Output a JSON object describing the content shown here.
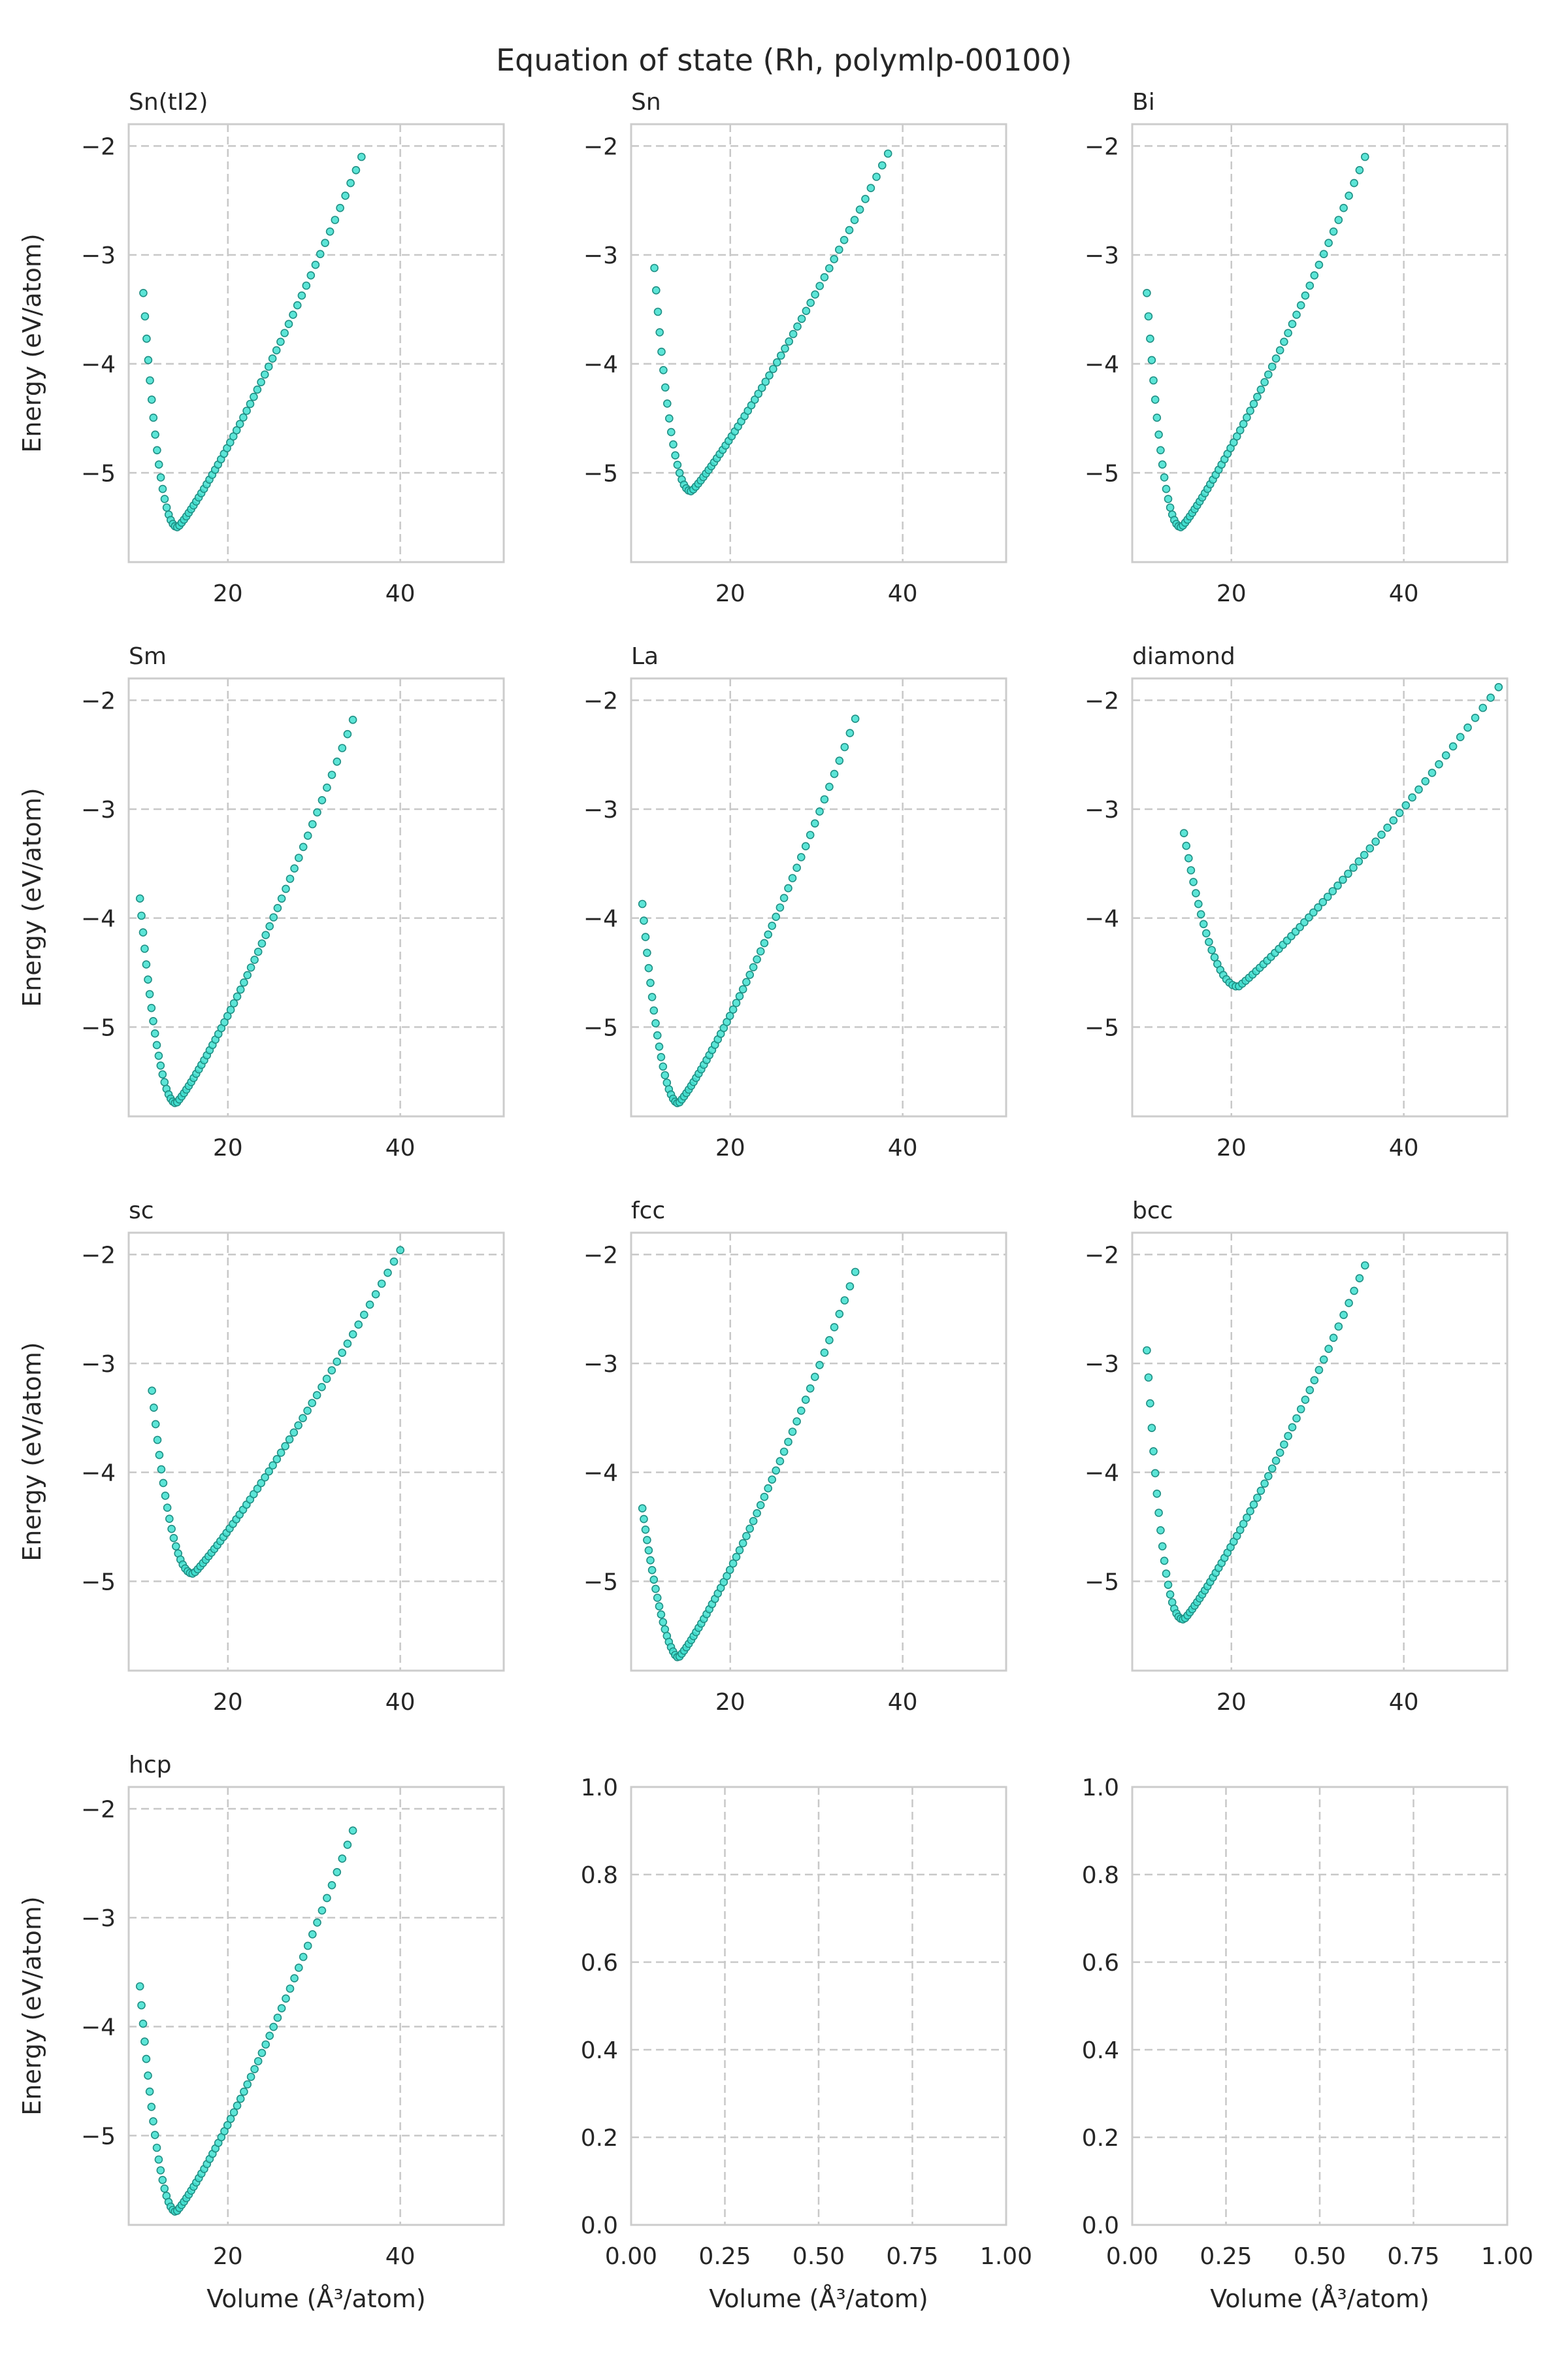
{
  "figure_title": "Equation of state (Rh, polymlp-00100)",
  "colors": {
    "marker": "#40e0d0",
    "marker_edge": "#1f8f84",
    "grid": "#c8c8c8",
    "frame": "#cccccc",
    "text": "#262626"
  },
  "chart_data": [
    {
      "type": "scatter",
      "title": "Sn(tI2)",
      "xlabel": "",
      "ylabel": "Energy (eV/atom)",
      "xlim": [
        8.5,
        52
      ],
      "ylim": [
        -5.82,
        -1.8
      ],
      "xticks": [
        20,
        40
      ],
      "xtick_labels": [
        "20",
        "40"
      ],
      "yticks": [
        -5,
        -4,
        -3,
        -2
      ],
      "ytick_labels": [
        "−5",
        "−4",
        "−3",
        "−2"
      ],
      "grid": true,
      "curve": {
        "v0": 14.2,
        "e0": -5.5,
        "vmin": 10.2,
        "vmax": 35.5,
        "n": 70,
        "emin_left": -3.35,
        "emax_right": -2.1,
        "left_sharp": 2.2,
        "right_sharp": 0.85
      }
    },
    {
      "type": "scatter",
      "title": "Sn",
      "xlabel": "",
      "ylabel": "",
      "xlim": [
        8.5,
        52
      ],
      "ylim": [
        -5.82,
        -1.8
      ],
      "xticks": [
        20,
        40
      ],
      "xtick_labels": [
        "20",
        "40"
      ],
      "yticks": [
        -5,
        -4,
        -3,
        -2
      ],
      "ytick_labels": [
        "−5",
        "−4",
        "−3",
        "−2"
      ],
      "grid": true,
      "curve": {
        "v0": 15.5,
        "e0": -5.17,
        "vmin": 11.2,
        "vmax": 38.3,
        "n": 70,
        "emin_left": -3.12,
        "emax_right": -2.07,
        "left_sharp": 2.2,
        "right_sharp": 0.8
      }
    },
    {
      "type": "scatter",
      "title": "Bi",
      "xlabel": "",
      "ylabel": "",
      "xlim": [
        8.5,
        52
      ],
      "ylim": [
        -5.82,
        -1.8
      ],
      "xticks": [
        20,
        40
      ],
      "xtick_labels": [
        "20",
        "40"
      ],
      "yticks": [
        -5,
        -4,
        -3,
        -2
      ],
      "ytick_labels": [
        "−5",
        "−4",
        "−3",
        "−2"
      ],
      "grid": true,
      "curve": {
        "v0": 14.2,
        "e0": -5.5,
        "vmin": 10.2,
        "vmax": 35.5,
        "n": 70,
        "emin_left": -3.35,
        "emax_right": -2.1,
        "left_sharp": 2.2,
        "right_sharp": 0.85
      }
    },
    {
      "type": "scatter",
      "title": "Sm",
      "xlabel": "",
      "ylabel": "Energy (eV/atom)",
      "xlim": [
        8.5,
        52
      ],
      "ylim": [
        -5.82,
        -1.8
      ],
      "xticks": [
        20,
        40
      ],
      "xtick_labels": [
        "20",
        "40"
      ],
      "yticks": [
        -5,
        -4,
        -3,
        -2
      ],
      "ytick_labels": [
        "−5",
        "−4",
        "−3",
        "−2"
      ],
      "grid": true,
      "curve": {
        "v0": 14.0,
        "e0": -5.7,
        "vmin": 9.8,
        "vmax": 34.5,
        "n": 70,
        "emin_left": -3.82,
        "emax_right": -2.18,
        "left_sharp": 2.0,
        "right_sharp": 0.9
      }
    },
    {
      "type": "scatter",
      "title": "La",
      "xlabel": "",
      "ylabel": "",
      "xlim": [
        8.5,
        52
      ],
      "ylim": [
        -5.82,
        -1.8
      ],
      "xticks": [
        20,
        40
      ],
      "xtick_labels": [
        "20",
        "40"
      ],
      "yticks": [
        -5,
        -4,
        -3,
        -2
      ],
      "ytick_labels": [
        "−5",
        "−4",
        "−3",
        "−2"
      ],
      "grid": true,
      "curve": {
        "v0": 14.0,
        "e0": -5.7,
        "vmin": 9.8,
        "vmax": 34.5,
        "n": 70,
        "emin_left": -3.87,
        "emax_right": -2.17,
        "left_sharp": 2.0,
        "right_sharp": 0.9
      }
    },
    {
      "type": "scatter",
      "title": "diamond",
      "xlabel": "",
      "ylabel": "",
      "xlim": [
        8.5,
        52
      ],
      "ylim": [
        -5.82,
        -1.8
      ],
      "xticks": [
        20,
        40
      ],
      "xtick_labels": [
        "20",
        "40"
      ],
      "yticks": [
        -5,
        -4,
        -3,
        -2
      ],
      "ytick_labels": [
        "−5",
        "−4",
        "−3",
        "−2"
      ],
      "grid": true,
      "curve": {
        "v0": 20.8,
        "e0": -4.63,
        "vmin": 14.5,
        "vmax": 51.0,
        "n": 70,
        "emin_left": -3.22,
        "emax_right": -1.88,
        "left_sharp": 2.0,
        "right_sharp": 0.75
      }
    },
    {
      "type": "scatter",
      "title": "sc",
      "xlabel": "",
      "ylabel": "Energy (eV/atom)",
      "xlim": [
        8.5,
        52
      ],
      "ylim": [
        -5.82,
        -1.8
      ],
      "xticks": [
        20,
        40
      ],
      "xtick_labels": [
        "20",
        "40"
      ],
      "yticks": [
        -5,
        -4,
        -3,
        -2
      ],
      "ytick_labels": [
        "−5",
        "−4",
        "−3",
        "−2"
      ],
      "grid": true,
      "curve": {
        "v0": 16.0,
        "e0": -4.93,
        "vmin": 11.2,
        "vmax": 40.0,
        "n": 70,
        "emin_left": -3.25,
        "emax_right": -1.96,
        "left_sharp": 2.2,
        "right_sharp": 0.78
      }
    },
    {
      "type": "scatter",
      "title": "fcc",
      "xlabel": "",
      "ylabel": "",
      "xlim": [
        8.5,
        52
      ],
      "ylim": [
        -5.82,
        -1.8
      ],
      "xticks": [
        20,
        40
      ],
      "xtick_labels": [
        "20",
        "40"
      ],
      "yticks": [
        -5,
        -4,
        -3,
        -2
      ],
      "ytick_labels": [
        "−5",
        "−4",
        "−3",
        "−2"
      ],
      "grid": true,
      "curve": {
        "v0": 14.0,
        "e0": -5.7,
        "vmin": 9.8,
        "vmax": 34.5,
        "n": 70,
        "emin_left": -4.33,
        "emax_right": -2.16,
        "left_sharp": 1.7,
        "right_sharp": 0.9
      }
    },
    {
      "type": "scatter",
      "title": "bcc",
      "xlabel": "",
      "ylabel": "",
      "xlim": [
        8.5,
        52
      ],
      "ylim": [
        -5.82,
        -1.8
      ],
      "xticks": [
        20,
        40
      ],
      "xtick_labels": [
        "20",
        "40"
      ],
      "yticks": [
        -5,
        -4,
        -3,
        -2
      ],
      "ytick_labels": [
        "−5",
        "−4",
        "−3",
        "−2"
      ],
      "grid": true,
      "curve": {
        "v0": 14.5,
        "e0": -5.35,
        "vmin": 10.2,
        "vmax": 35.5,
        "n": 70,
        "emin_left": -2.88,
        "emax_right": -2.1,
        "left_sharp": 2.4,
        "right_sharp": 0.85
      }
    },
    {
      "type": "scatter",
      "title": "hcp",
      "xlabel": "Volume (Å³/atom)",
      "ylabel": "Energy (eV/atom)",
      "xlim": [
        8.5,
        52
      ],
      "ylim": [
        -5.82,
        -1.8
      ],
      "xticks": [
        20,
        40
      ],
      "xtick_labels": [
        "20",
        "40"
      ],
      "yticks": [
        -5,
        -4,
        -3,
        -2
      ],
      "ytick_labels": [
        "−5",
        "−4",
        "−3",
        "−2"
      ],
      "grid": true,
      "curve": {
        "v0": 14.0,
        "e0": -5.7,
        "vmin": 9.8,
        "vmax": 34.5,
        "n": 70,
        "emin_left": -3.63,
        "emax_right": -2.2,
        "left_sharp": 2.0,
        "right_sharp": 0.9
      }
    },
    {
      "type": "scatter",
      "title": "",
      "xlabel": "Volume (Å³/atom)",
      "ylabel": "",
      "xlim": [
        0,
        1
      ],
      "ylim": [
        0,
        1
      ],
      "xticks": [
        0,
        0.25,
        0.5,
        0.75,
        1.0
      ],
      "xtick_labels": [
        "0.00",
        "0.25",
        "0.50",
        "0.75",
        "1.00"
      ],
      "yticks": [
        0,
        0.2,
        0.4,
        0.6,
        0.8,
        1.0
      ],
      "ytick_labels": [
        "0.0",
        "0.2",
        "0.4",
        "0.6",
        "0.8",
        "1.0"
      ],
      "grid": true,
      "empty": true
    },
    {
      "type": "scatter",
      "title": "",
      "xlabel": "Volume (Å³/atom)",
      "ylabel": "",
      "xlim": [
        0,
        1
      ],
      "ylim": [
        0,
        1
      ],
      "xticks": [
        0,
        0.25,
        0.5,
        0.75,
        1.0
      ],
      "xtick_labels": [
        "0.00",
        "0.25",
        "0.50",
        "0.75",
        "1.00"
      ],
      "yticks": [
        0,
        0.2,
        0.4,
        0.6,
        0.8,
        1.0
      ],
      "ytick_labels": [
        "0.0",
        "0.2",
        "0.4",
        "0.6",
        "0.8",
        "1.0"
      ],
      "grid": true,
      "empty": true
    }
  ]
}
